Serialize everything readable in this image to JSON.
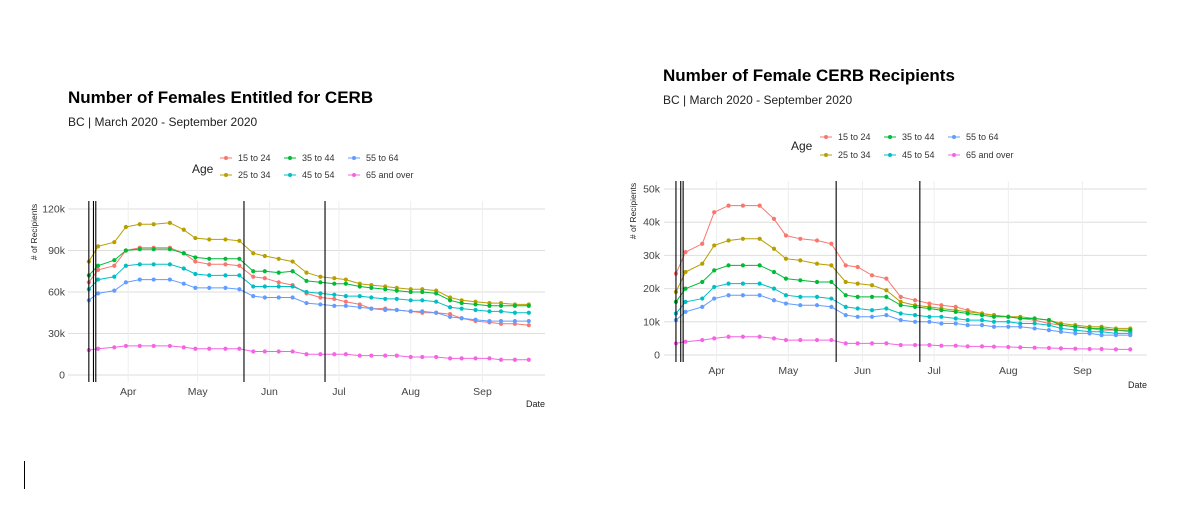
{
  "chart_data": [
    {
      "type": "line",
      "title": "Number of Females Entitled for CERB",
      "subtitle": "BC | March 2020 - September 2020",
      "xlabel": "Date",
      "ylabel": "# of Recipients",
      "legend_title": "Age",
      "legend_position": "top",
      "grid": true,
      "ylim": [
        0,
        120000
      ],
      "y_ticks": [
        0,
        30000,
        60000,
        90000,
        120000
      ],
      "y_tick_labels": [
        "0",
        "30k",
        "60k",
        "90k",
        "120k"
      ],
      "x_tick_labels": [
        "Apr",
        "May",
        "Jun",
        "Jul",
        "Aug",
        "Sep"
      ],
      "x_tick_dates": [
        "2020-04-01",
        "2020-05-01",
        "2020-06-01",
        "2020-07-01",
        "2020-08-01",
        "2020-09-01"
      ],
      "vlines": [
        "2020-03-15",
        "2020-03-17",
        "2020-03-18",
        "2020-05-21",
        "2020-06-25"
      ],
      "x": [
        "2020-03-15",
        "2020-03-19",
        "2020-03-26",
        "2020-03-31",
        "2020-04-06",
        "2020-04-12",
        "2020-04-19",
        "2020-04-25",
        "2020-04-30",
        "2020-05-06",
        "2020-05-13",
        "2020-05-19",
        "2020-05-25",
        "2020-05-30",
        "2020-06-05",
        "2020-06-11",
        "2020-06-17",
        "2020-06-23",
        "2020-06-29",
        "2020-07-04",
        "2020-07-10",
        "2020-07-15",
        "2020-07-21",
        "2020-07-26",
        "2020-08-01",
        "2020-08-06",
        "2020-08-12",
        "2020-08-18",
        "2020-08-23",
        "2020-08-29",
        "2020-09-04",
        "2020-09-09",
        "2020-09-15",
        "2020-09-21"
      ],
      "series": [
        {
          "name": "15 to 24",
          "color": "#F8766D",
          "values": [
            67000,
            76000,
            79000,
            90000,
            92000,
            92000,
            92000,
            88000,
            82000,
            80000,
            80000,
            79000,
            71000,
            70000,
            67000,
            65000,
            59000,
            56000,
            55000,
            53000,
            51000,
            48000,
            48000,
            47000,
            46000,
            45000,
            45000,
            44000,
            41000,
            39000,
            38000,
            37000,
            37000,
            36000
          ]
        },
        {
          "name": "25 to 34",
          "color": "#B79F00",
          "values": [
            82000,
            93000,
            96000,
            107000,
            109000,
            109000,
            110000,
            105000,
            99000,
            98000,
            98000,
            97000,
            88000,
            86000,
            84000,
            82000,
            74000,
            71000,
            70000,
            69000,
            66000,
            65000,
            64000,
            63000,
            62000,
            62000,
            61000,
            56000,
            54000,
            53000,
            52000,
            52000,
            51000,
            51000
          ]
        },
        {
          "name": "35 to 44",
          "color": "#00BA38",
          "values": [
            72000,
            79000,
            83000,
            90000,
            91000,
            91000,
            91000,
            88000,
            85000,
            84000,
            84000,
            84000,
            75000,
            75000,
            74000,
            75000,
            68000,
            67000,
            66000,
            66000,
            64000,
            63000,
            62000,
            61000,
            60000,
            60000,
            59000,
            54000,
            52000,
            51000,
            50000,
            50000,
            50000,
            50000
          ]
        },
        {
          "name": "45 to 54",
          "color": "#00BFC4",
          "values": [
            62000,
            69000,
            71000,
            79000,
            80000,
            80000,
            80000,
            77000,
            73000,
            72000,
            72000,
            72000,
            64000,
            64000,
            64000,
            64000,
            60000,
            59000,
            58000,
            57000,
            57000,
            56000,
            55000,
            55000,
            54000,
            54000,
            53000,
            49000,
            48000,
            47000,
            46000,
            46000,
            45000,
            45000
          ]
        },
        {
          "name": "55 to 64",
          "color": "#619CFF",
          "values": [
            54000,
            59000,
            61000,
            67000,
            69000,
            69000,
            69000,
            66000,
            63000,
            63000,
            63000,
            62000,
            57000,
            56000,
            56000,
            56000,
            52000,
            51000,
            50000,
            50000,
            49000,
            48000,
            47000,
            47000,
            46000,
            46000,
            45000,
            42000,
            41000,
            40000,
            39000,
            39000,
            39000,
            39000
          ]
        },
        {
          "name": "65 and over",
          "color": "#F564E3",
          "values": [
            18000,
            19000,
            20000,
            21000,
            21000,
            21000,
            21000,
            20000,
            19000,
            19000,
            19000,
            19000,
            17000,
            17000,
            17000,
            17000,
            15000,
            15000,
            15000,
            15000,
            14000,
            14000,
            14000,
            14000,
            13000,
            13000,
            13000,
            12000,
            12000,
            12000,
            12000,
            11000,
            11000,
            11000
          ]
        }
      ]
    },
    {
      "type": "line",
      "title": "Number of Female CERB Recipients",
      "subtitle": "BC | March 2020 - September 2020",
      "xlabel": "Date",
      "ylabel": "# of Recipients",
      "legend_title": "Age",
      "legend_position": "top",
      "grid": true,
      "ylim": [
        0,
        50000
      ],
      "y_ticks": [
        0,
        10000,
        20000,
        30000,
        40000,
        50000
      ],
      "y_tick_labels": [
        "0",
        "10k",
        "20k",
        "30k",
        "40k",
        "50k"
      ],
      "x_tick_labels": [
        "Apr",
        "May",
        "Jun",
        "Jul",
        "Aug",
        "Sep"
      ],
      "x_tick_dates": [
        "2020-04-01",
        "2020-05-01",
        "2020-06-01",
        "2020-07-01",
        "2020-08-01",
        "2020-09-01"
      ],
      "vlines": [
        "2020-03-15",
        "2020-03-17",
        "2020-03-18",
        "2020-05-21",
        "2020-06-25"
      ],
      "x": [
        "2020-03-15",
        "2020-03-19",
        "2020-03-26",
        "2020-03-31",
        "2020-04-06",
        "2020-04-12",
        "2020-04-19",
        "2020-04-25",
        "2020-04-30",
        "2020-05-06",
        "2020-05-13",
        "2020-05-19",
        "2020-05-25",
        "2020-05-30",
        "2020-06-05",
        "2020-06-11",
        "2020-06-17",
        "2020-06-23",
        "2020-06-29",
        "2020-07-04",
        "2020-07-10",
        "2020-07-15",
        "2020-07-21",
        "2020-07-26",
        "2020-08-01",
        "2020-08-06",
        "2020-08-12",
        "2020-08-18",
        "2020-08-23",
        "2020-08-29",
        "2020-09-04",
        "2020-09-09",
        "2020-09-15",
        "2020-09-21"
      ],
      "series": [
        {
          "name": "15 to 24",
          "color": "#F8766D",
          "values": [
            24500,
            31000,
            33500,
            43000,
            45000,
            45000,
            45000,
            41000,
            36000,
            35000,
            34500,
            33500,
            27000,
            26500,
            24000,
            23000,
            17500,
            16500,
            15500,
            15000,
            14500,
            13500,
            12500,
            12000,
            11500,
            11000,
            10500,
            9500,
            9000,
            8500,
            8000,
            7500,
            7500,
            7000
          ]
        },
        {
          "name": "25 to 34",
          "color": "#B79F00",
          "values": [
            19000,
            25000,
            27500,
            33000,
            34500,
            35000,
            35000,
            32000,
            29000,
            28500,
            27500,
            27000,
            22000,
            21500,
            21000,
            19500,
            16000,
            15000,
            14500,
            14000,
            13500,
            13000,
            12500,
            12000,
            11500,
            11500,
            11000,
            10500,
            9500,
            9000,
            8500,
            8500,
            8000,
            8000
          ]
        },
        {
          "name": "35 to 44",
          "color": "#00BA38",
          "values": [
            16000,
            20000,
            22000,
            25500,
            27000,
            27000,
            27000,
            25000,
            23000,
            22500,
            22000,
            22000,
            18000,
            17500,
            17500,
            17500,
            15000,
            14500,
            14000,
            13500,
            13000,
            12500,
            12000,
            11500,
            11500,
            11000,
            11000,
            10500,
            9000,
            8500,
            8000,
            8000,
            7500,
            7500
          ]
        },
        {
          "name": "45 to 54",
          "color": "#00BFC4",
          "values": [
            12500,
            16000,
            17000,
            20500,
            21500,
            21500,
            21500,
            20000,
            18000,
            17500,
            17500,
            17000,
            14500,
            14000,
            13500,
            14000,
            12500,
            12000,
            11500,
            11500,
            11000,
            10500,
            10500,
            10000,
            10000,
            9500,
            9500,
            9000,
            8000,
            7500,
            7000,
            7000,
            6500,
            6500
          ]
        },
        {
          "name": "55 to 64",
          "color": "#619CFF",
          "values": [
            10500,
            13000,
            14500,
            17000,
            18000,
            18000,
            18000,
            16500,
            15500,
            15000,
            15000,
            14500,
            12000,
            11500,
            11500,
            12000,
            10500,
            10000,
            10000,
            9500,
            9500,
            9000,
            9000,
            8500,
            8500,
            8500,
            8000,
            7500,
            7000,
            6500,
            6500,
            6000,
            6000,
            6000
          ]
        },
        {
          "name": "65 and over",
          "color": "#F564E3",
          "values": [
            3500,
            4000,
            4500,
            5000,
            5500,
            5500,
            5500,
            5000,
            4500,
            4500,
            4500,
            4500,
            3500,
            3500,
            3500,
            3500,
            3000,
            3000,
            3000,
            2800,
            2800,
            2600,
            2600,
            2500,
            2400,
            2300,
            2200,
            2100,
            2000,
            1900,
            1800,
            1800,
            1700,
            1700
          ]
        }
      ]
    }
  ]
}
